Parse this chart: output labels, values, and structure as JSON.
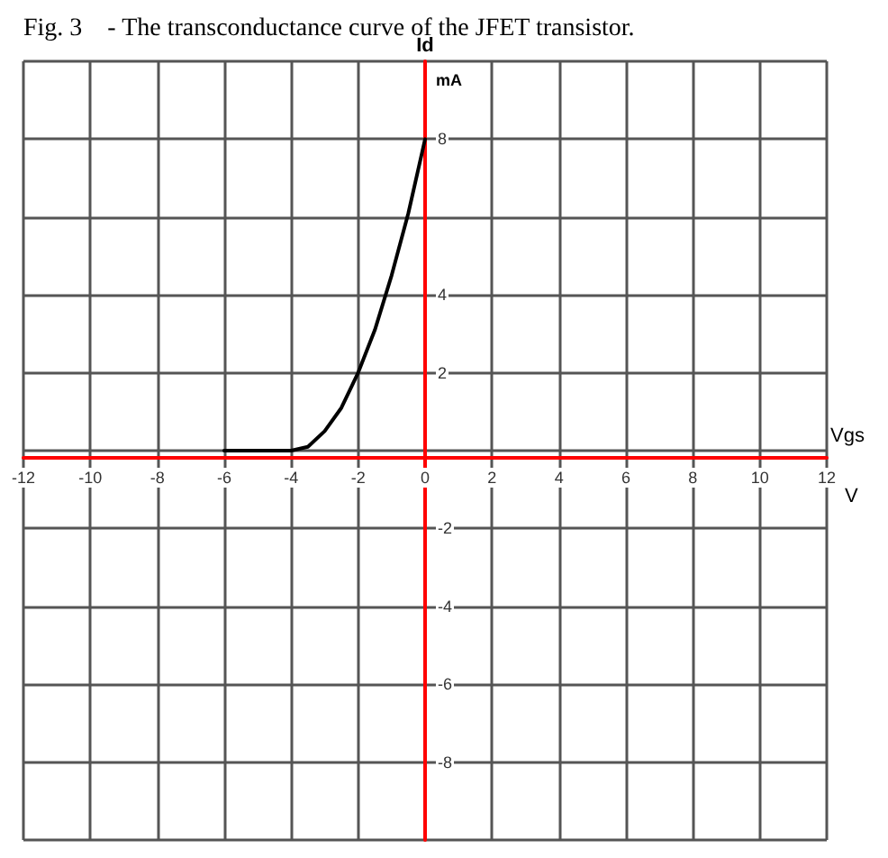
{
  "chart_data": {
    "type": "line",
    "title": "Fig. 3    - The transconductance curve of the JFET transistor.",
    "xlabel": "Vgs",
    "ylabel": "Id",
    "annotations": [
      "mA",
      "V"
    ],
    "series": [
      {
        "color": "#000000",
        "x": [
          -6,
          -5,
          -4,
          -3.5,
          -3,
          -2.5,
          -2,
          -1.5,
          -1,
          -0.5,
          0
        ],
        "values": [
          0,
          0,
          0,
          0.1,
          0.5,
          1.1,
          2,
          3.1,
          4.5,
          6.1,
          8
        ]
      }
    ],
    "xlim": [
      -12,
      12
    ],
    "ylim": [
      -10,
      10
    ],
    "xticks": [
      -12,
      -10,
      -8,
      -6,
      -4,
      -2,
      0,
      2,
      4,
      6,
      8,
      10,
      12
    ],
    "yticks": [
      {
        "value": -10,
        "label": null
      },
      -8,
      -6,
      -4,
      -2,
      {
        "value": 0,
        "label": null
      },
      2,
      4,
      {
        "value": 6,
        "label": null
      },
      8,
      {
        "value": 10,
        "label": null
      }
    ],
    "grid": true,
    "marker": "none",
    "line_style": "solid"
  }
}
